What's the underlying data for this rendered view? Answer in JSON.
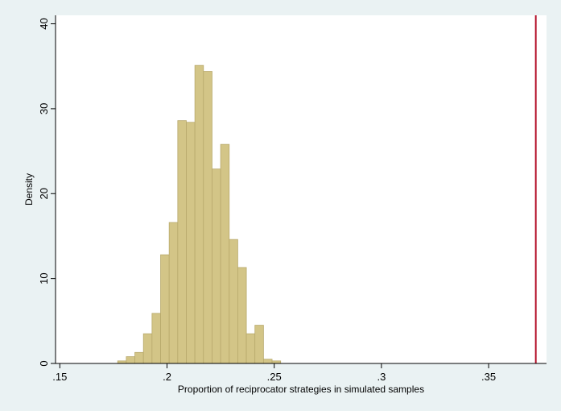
{
  "chart_data": {
    "type": "bar",
    "subtype": "histogram",
    "title": "",
    "xlabel": "Proportion of reciprocator strategies in simulated samples",
    "ylabel": "Density",
    "xlim": [
      0.148,
      0.377
    ],
    "ylim": [
      0,
      41
    ],
    "x_ticks": [
      {
        "value": 0.15,
        "label": ".15"
      },
      {
        "value": 0.2,
        "label": ".2"
      },
      {
        "value": 0.25,
        "label": ".25"
      },
      {
        "value": 0.3,
        "label": ".3"
      },
      {
        "value": 0.35,
        "label": ".35"
      }
    ],
    "y_ticks": [
      {
        "value": 0,
        "label": "0"
      },
      {
        "value": 10,
        "label": "10"
      },
      {
        "value": 20,
        "label": "20"
      },
      {
        "value": 30,
        "label": "30"
      },
      {
        "value": 40,
        "label": "40"
      }
    ],
    "bin_width": 0.004,
    "bin_starts": [
      0.177,
      0.181,
      0.185,
      0.189,
      0.193,
      0.197,
      0.201,
      0.205,
      0.209,
      0.213,
      0.217,
      0.221,
      0.225,
      0.229,
      0.233,
      0.237,
      0.241,
      0.245,
      0.249,
      0.253
    ],
    "values": [
      0.3,
      0.8,
      1.3,
      3.5,
      5.9,
      12.8,
      16.6,
      28.6,
      28.4,
      35.1,
      34.4,
      22.9,
      25.8,
      14.6,
      11.3,
      3.5,
      4.5,
      0.5,
      0.3,
      0
    ],
    "reference_line": {
      "x": 0.372,
      "color": "#b5122b"
    },
    "bar_color": "#d3c587",
    "bar_edge_color": "#b8a96c",
    "grid": false,
    "legend": "none"
  }
}
